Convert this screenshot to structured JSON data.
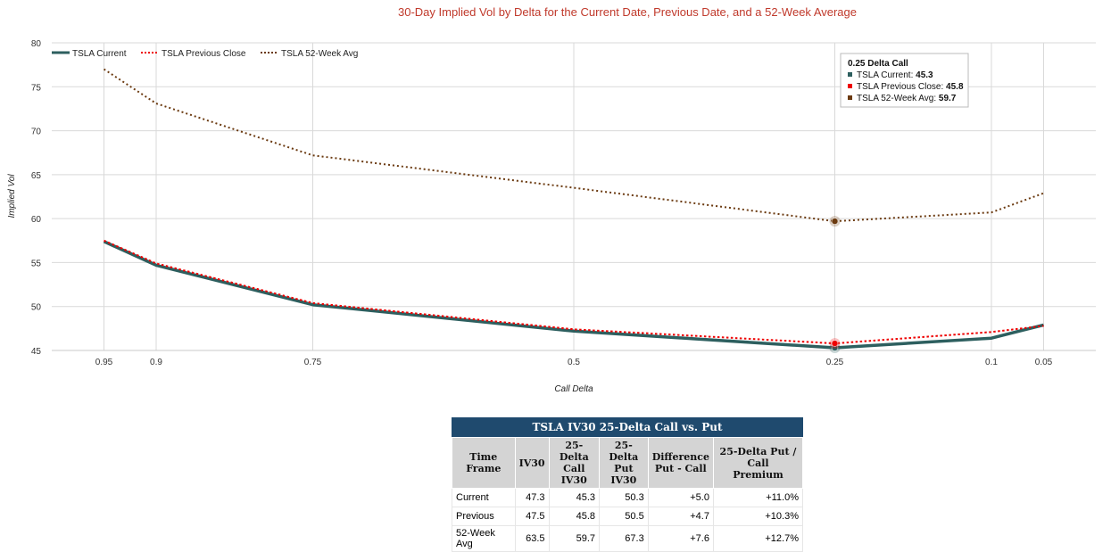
{
  "chart_data": {
    "type": "line",
    "title": "30-Day Implied Vol by Delta for the Current Date, Previous Date, and a 52-Week Average",
    "xlabel": "Call Delta",
    "ylabel": "Implied Vol",
    "ylim": [
      45,
      80
    ],
    "yticks": [
      45,
      50,
      55,
      60,
      65,
      70,
      75,
      80
    ],
    "x": [
      0.95,
      0.9,
      0.75,
      0.5,
      0.25,
      0.1,
      0.05
    ],
    "x_tick_labels": [
      "0.95",
      "0.9",
      "0.75",
      "0.5",
      "0.25",
      "0.1",
      "0.05"
    ],
    "x_axis_reversed": true,
    "grid": true,
    "legend_position": "top-left",
    "series": [
      {
        "name": "TSLA Current",
        "color": "#2d5f5f",
        "style": "solid",
        "values": [
          57.4,
          54.7,
          50.2,
          47.2,
          45.3,
          46.4,
          47.9
        ]
      },
      {
        "name": "TSLA Previous Close",
        "color": "#ee0000",
        "style": "dotted",
        "values": [
          57.5,
          54.9,
          50.4,
          47.4,
          45.8,
          47.1,
          47.8
        ]
      },
      {
        "name": "TSLA 52-Week Avg",
        "color": "#6b3a10",
        "style": "dotted",
        "values": [
          77.0,
          73.1,
          67.2,
          63.5,
          59.7,
          60.7,
          62.9
        ]
      }
    ],
    "tooltip": {
      "title": "0.25 Delta Call",
      "rows": [
        {
          "label": "TSLA Current: ",
          "value": "45.3",
          "color": "#2d5f5f"
        },
        {
          "label": "TSLA Previous Close: ",
          "value": "45.8",
          "color": "#ee0000"
        },
        {
          "label": "TSLA 52-Week Avg: ",
          "value": "59.7",
          "color": "#6b3a10"
        }
      ]
    }
  },
  "table": {
    "title": "TSLA IV30 25-Delta Call vs. Put",
    "headers": [
      [
        "Time Frame"
      ],
      [
        "IV30"
      ],
      [
        "25-Delta",
        "Call IV30"
      ],
      [
        "25-Delta",
        "Put IV30"
      ],
      [
        "Difference",
        "Put - Call"
      ],
      [
        "25-Delta Put / Call",
        "Premium"
      ]
    ],
    "rows": [
      [
        "Current",
        "47.3",
        "45.3",
        "50.3",
        "+5.0",
        "+11.0%"
      ],
      [
        "Previous",
        "47.5",
        "45.8",
        "50.5",
        "+4.7",
        "+10.3%"
      ],
      [
        "52-Week Avg",
        "63.5",
        "59.7",
        "67.3",
        "+7.6",
        "+12.7%"
      ]
    ]
  }
}
